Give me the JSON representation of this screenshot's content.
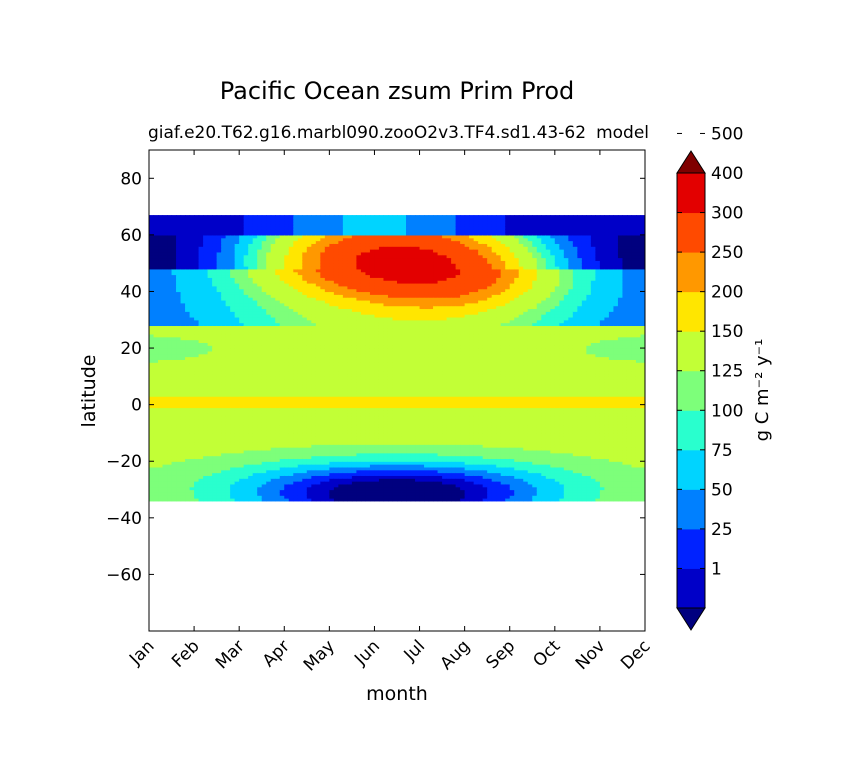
{
  "chart_data": {
    "type": "heatmap",
    "title": "Pacific Ocean zsum Prim Prod",
    "subtitle_left": "giaf.e20.T62.g16.marbl090.zooO2v3.TF4.sd1.43-62",
    "subtitle_right": "model",
    "xlabel": "month",
    "ylabel": "latitude",
    "x_tick_labels": [
      "Jan",
      "Feb",
      "Mar",
      "Apr",
      "May",
      "Jun",
      "Jul",
      "Aug",
      "Sep",
      "Oct",
      "Nov",
      "Dec"
    ],
    "y_ticks": [
      80,
      60,
      40,
      20,
      0,
      -20,
      -40,
      -60
    ],
    "y_tick_labels": [
      "80",
      "60",
      "40",
      "20",
      "0",
      "−20",
      "−40",
      "−60"
    ],
    "ylim": [
      -80,
      90
    ],
    "data_lat_range": [
      -34,
      67
    ],
    "colorbar": {
      "label": "g C m⁻² y⁻¹",
      "levels": [
        1,
        25,
        50,
        75,
        100,
        125,
        150,
        200,
        250,
        300,
        400,
        500
      ],
      "tick_labels": [
        "1",
        "25",
        "50",
        "75",
        "100",
        "125",
        "150",
        "200",
        "250",
        "300",
        "400",
        "500"
      ],
      "colors": [
        "#00007f",
        "#0000c8",
        "#0022ff",
        "#0080ff",
        "#00d4ff",
        "#29ffce",
        "#7dff7a",
        "#c2ff36",
        "#ffe600",
        "#ff9800",
        "#ff4a00",
        "#e30000",
        "#7f0000"
      ],
      "extend": "both"
    }
  }
}
